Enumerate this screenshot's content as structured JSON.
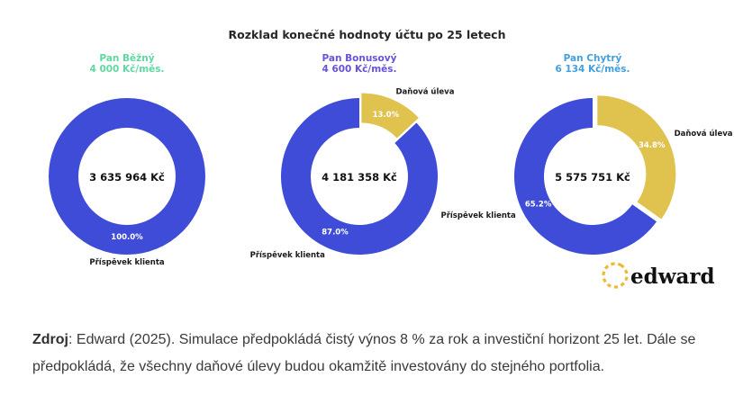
{
  "title": "Rozklad konečné hodnoty účtu po 25 letech",
  "chart_data": {
    "type": "pie",
    "subtype": "donut",
    "start_angle": 90,
    "direction": "clockwise",
    "unit": "Kč",
    "charts": [
      {
        "name": "Pan Běžný",
        "contribution": "4 000 Kč/měs.",
        "header_color": "#5fd8a0",
        "center_value": "3 635 964 Kč",
        "segments": [
          {
            "label": "Příspěvek klienta",
            "pct": 100.0,
            "pct_label": "100.0%",
            "color": "#3e4cd7",
            "explode": 0
          }
        ]
      },
      {
        "name": "Pan Bonusový",
        "contribution": "4 600 Kč/měs.",
        "header_color": "#6952d6",
        "center_value": "4 181 358 Kč",
        "segments": [
          {
            "label": "Daňová úleva",
            "pct": 13.0,
            "pct_label": "13.0%",
            "color": "#e0c24f",
            "explode": 6
          },
          {
            "label": "Příspěvek klienta",
            "pct": 87.0,
            "pct_label": "87.0%",
            "color": "#3e4cd7",
            "explode": 0
          }
        ]
      },
      {
        "name": "Pan Chytrý",
        "contribution": "6 134 Kč/měs.",
        "header_color": "#42a0dd",
        "center_value": "5 575 751 Kč",
        "segments": [
          {
            "label": "Daňová úleva",
            "pct": 34.8,
            "pct_label": "34.8%",
            "color": "#e0c24f",
            "explode": 6
          },
          {
            "label": "Příspěvek klienta",
            "pct": 65.2,
            "pct_label": "65.2%",
            "color": "#3e4cd7",
            "explode": 0
          }
        ]
      }
    ]
  },
  "footer": {
    "source_label": "Zdroj",
    "line1_rest": ": Edward (2025). Simulace předpokládá čistý výnos 8 % za rok a investiční horizont 25 let. Dále se",
    "line2": "předpokládá, že všechny daňové úlevy budou okamžitě investovány do stejného portfolia."
  },
  "logo": {
    "text": "edward"
  }
}
